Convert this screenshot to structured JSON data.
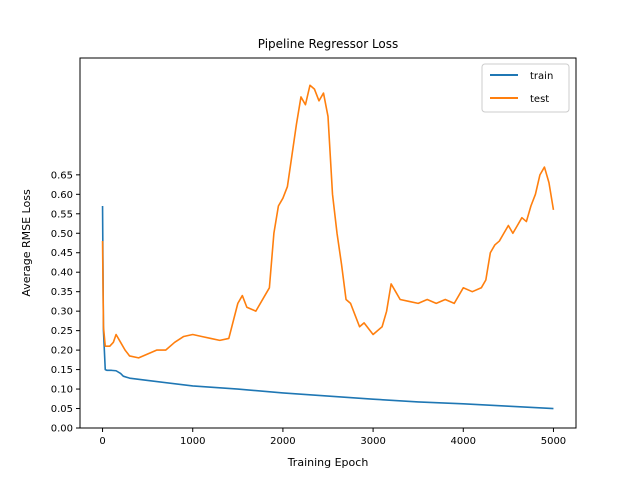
{
  "chart_data": {
    "type": "line",
    "title": "Pipeline Regressor Loss",
    "xlabel": "Training Epoch",
    "ylabel": "Average RMSE Loss",
    "xlim": [
      -250,
      5250
    ],
    "ylim": [
      0,
      0.95
    ],
    "xticks": [
      0,
      1000,
      2000,
      3000,
      4000,
      5000
    ],
    "yticks": [
      0.0,
      0.05,
      0.1,
      0.15,
      0.2,
      0.25,
      0.3,
      0.35,
      0.4,
      0.45,
      0.5,
      0.55,
      0.6,
      0.65
    ],
    "grid": false,
    "legend_position": "top-right",
    "series": [
      {
        "name": "train",
        "color": "#1f77b4",
        "x": [
          0,
          10,
          30,
          50,
          100,
          150,
          200,
          230,
          300,
          500,
          1000,
          1500,
          2000,
          2500,
          3000,
          3500,
          4000,
          4500,
          5000
        ],
        "values": [
          0.57,
          0.25,
          0.15,
          0.148,
          0.148,
          0.147,
          0.14,
          0.133,
          0.128,
          0.122,
          0.108,
          0.1,
          0.09,
          0.082,
          0.074,
          0.067,
          0.062,
          0.056,
          0.05
        ]
      },
      {
        "name": "test",
        "color": "#ff7f0e",
        "x": [
          0,
          10,
          30,
          80,
          120,
          150,
          200,
          250,
          300,
          400,
          500,
          600,
          700,
          800,
          900,
          1000,
          1100,
          1200,
          1300,
          1400,
          1500,
          1550,
          1600,
          1700,
          1800,
          1850,
          1900,
          1950,
          2000,
          2050,
          2100,
          2150,
          2200,
          2250,
          2300,
          2350,
          2400,
          2450,
          2500,
          2550,
          2600,
          2650,
          2700,
          2750,
          2800,
          2850,
          2900,
          3000,
          3100,
          3150,
          3200,
          3250,
          3300,
          3400,
          3500,
          3600,
          3700,
          3800,
          3900,
          4000,
          4100,
          4200,
          4250,
          4300,
          4350,
          4400,
          4450,
          4500,
          4550,
          4600,
          4650,
          4700,
          4750,
          4800,
          4850,
          4900,
          4950,
          5000
        ],
        "values": [
          0.48,
          0.26,
          0.21,
          0.21,
          0.22,
          0.24,
          0.22,
          0.2,
          0.185,
          0.18,
          0.19,
          0.2,
          0.2,
          0.22,
          0.235,
          0.24,
          0.235,
          0.23,
          0.225,
          0.23,
          0.32,
          0.34,
          0.31,
          0.3,
          0.34,
          0.36,
          0.5,
          0.57,
          0.59,
          0.62,
          0.7,
          0.78,
          0.85,
          0.83,
          0.88,
          0.87,
          0.84,
          0.86,
          0.8,
          0.6,
          0.5,
          0.42,
          0.33,
          0.32,
          0.29,
          0.26,
          0.27,
          0.24,
          0.26,
          0.3,
          0.37,
          0.35,
          0.33,
          0.325,
          0.32,
          0.33,
          0.32,
          0.33,
          0.32,
          0.36,
          0.35,
          0.36,
          0.38,
          0.45,
          0.47,
          0.48,
          0.5,
          0.52,
          0.5,
          0.52,
          0.54,
          0.53,
          0.57,
          0.6,
          0.65,
          0.67,
          0.63,
          0.56
        ]
      }
    ]
  }
}
